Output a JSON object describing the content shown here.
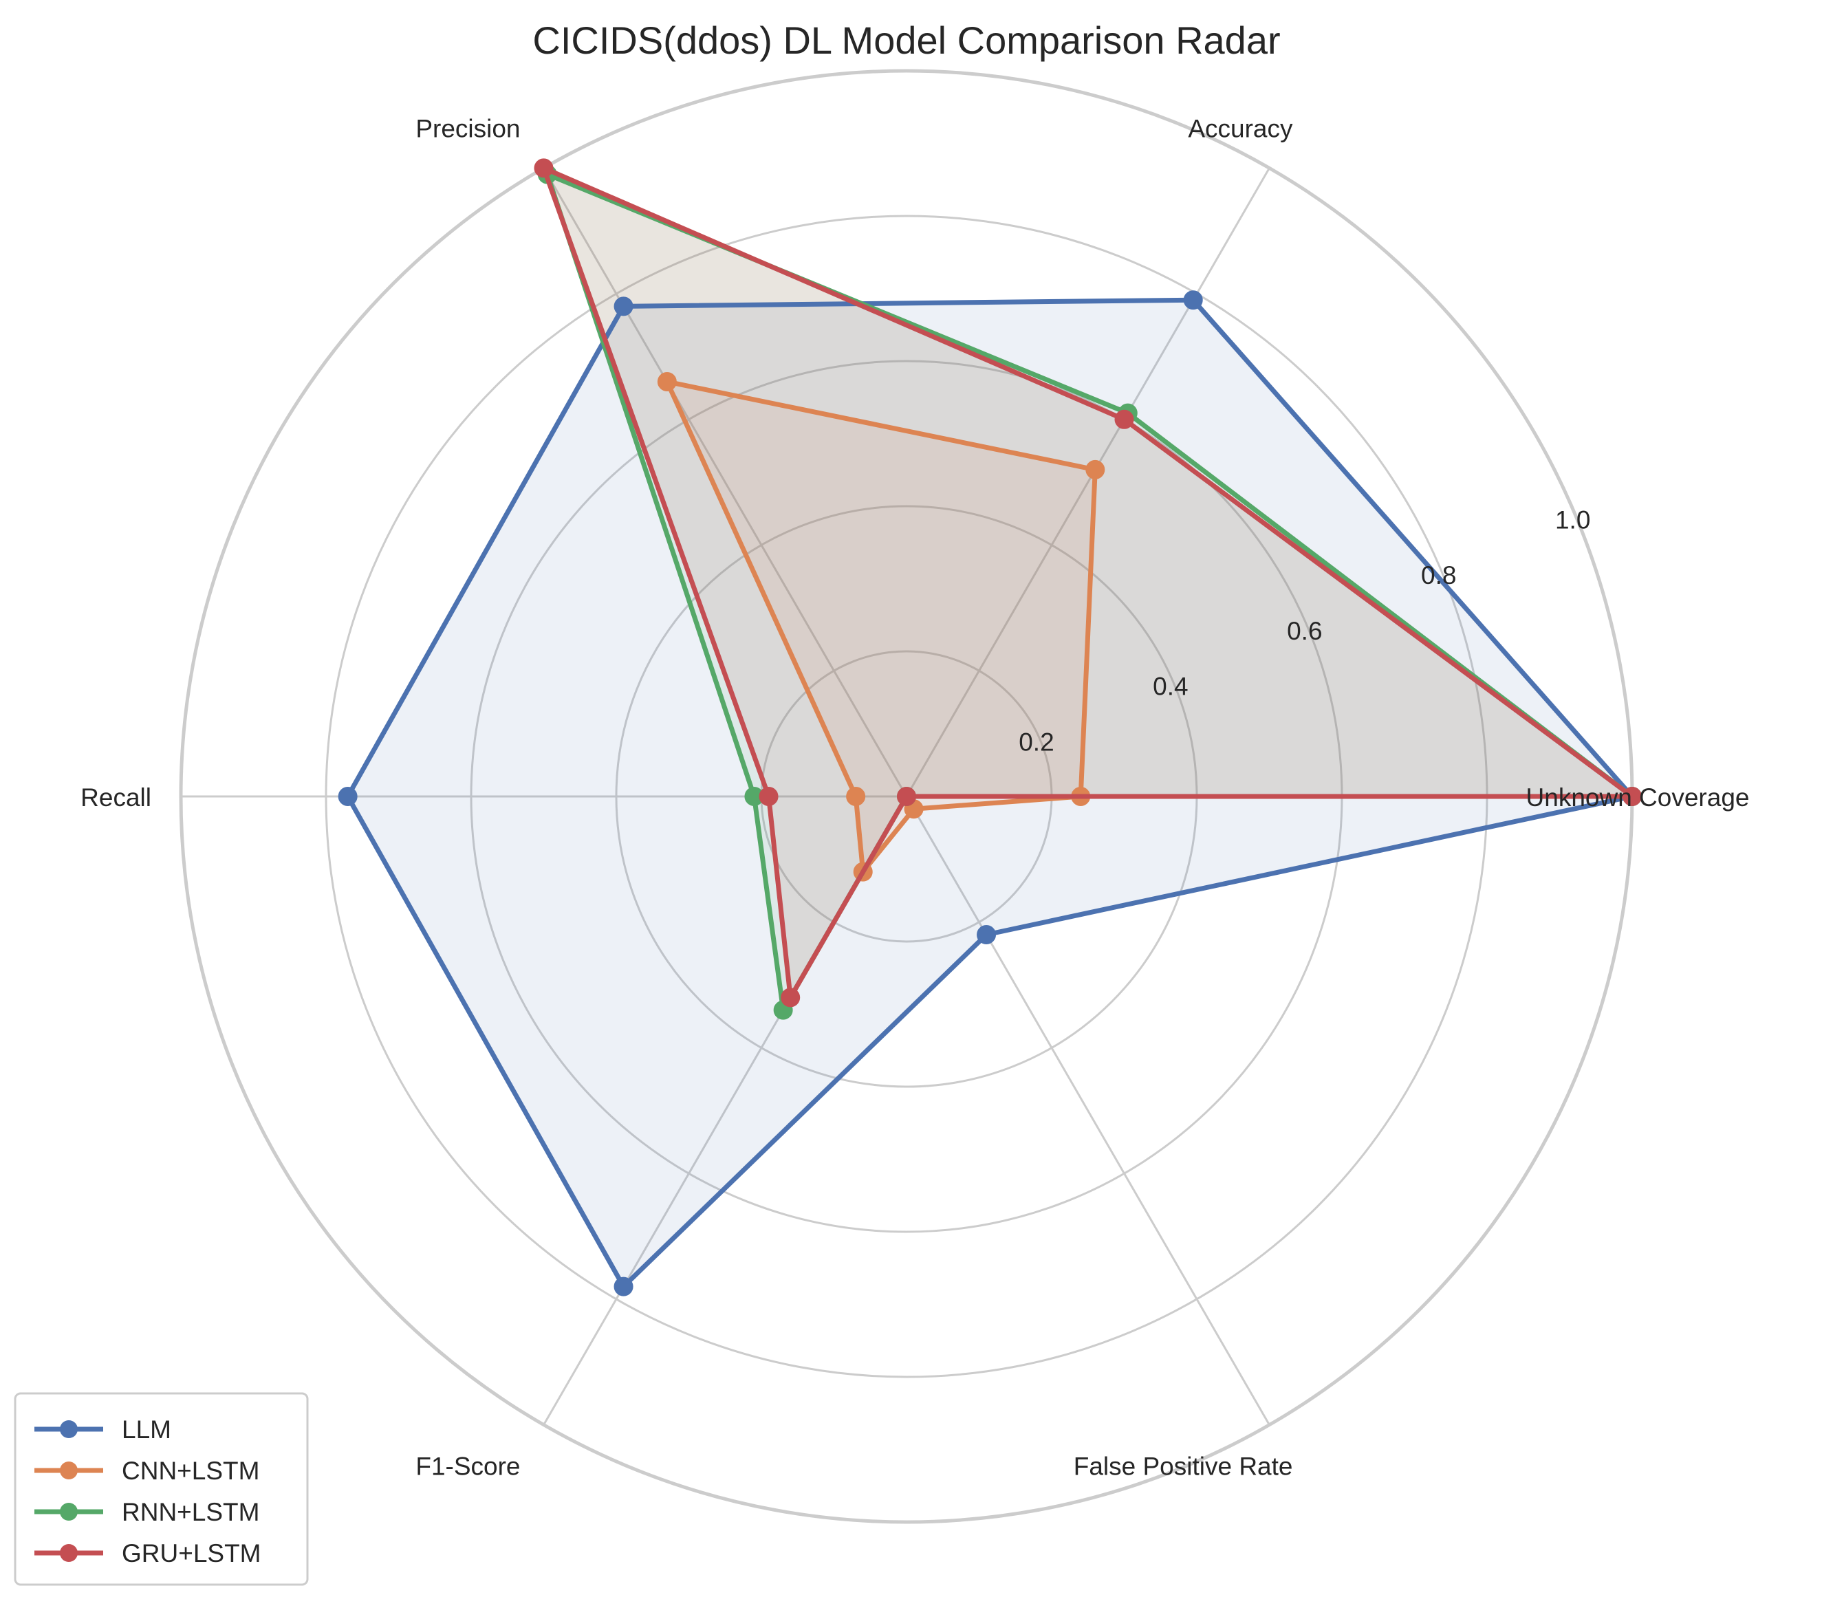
{
  "chart_data": {
    "type": "radar",
    "title": "CICIDS(ddos) DL Model Comparison Radar",
    "axes": [
      "Unknown Coverage",
      "Accuracy",
      "Precision",
      "Recall",
      "F1-Score",
      "False Positive Rate"
    ],
    "rlim": [
      0,
      1.0
    ],
    "r_ticks": [
      0.2,
      0.4,
      0.6,
      0.8,
      1.0
    ],
    "r_tick_labels": [
      "0.2",
      "0.4",
      "0.6",
      "0.8",
      "1.0"
    ],
    "grid": true,
    "legend_position": "lower-left",
    "series": [
      {
        "name": "LLM",
        "color": "#4c72b0",
        "values": [
          1.0,
          0.79,
          0.78,
          0.77,
          0.78,
          0.22
        ]
      },
      {
        "name": "CNN+LSTM",
        "color": "#dd8452",
        "values": [
          0.24,
          0.52,
          0.66,
          0.07,
          0.12,
          0.02
        ]
      },
      {
        "name": "RNN+LSTM",
        "color": "#55a868",
        "values": [
          1.0,
          0.61,
          0.99,
          0.21,
          0.34,
          0.0
        ]
      },
      {
        "name": "GRU+LSTM",
        "color": "#c44e52",
        "values": [
          1.0,
          0.6,
          1.0,
          0.19,
          0.32,
          0.0
        ]
      }
    ]
  }
}
